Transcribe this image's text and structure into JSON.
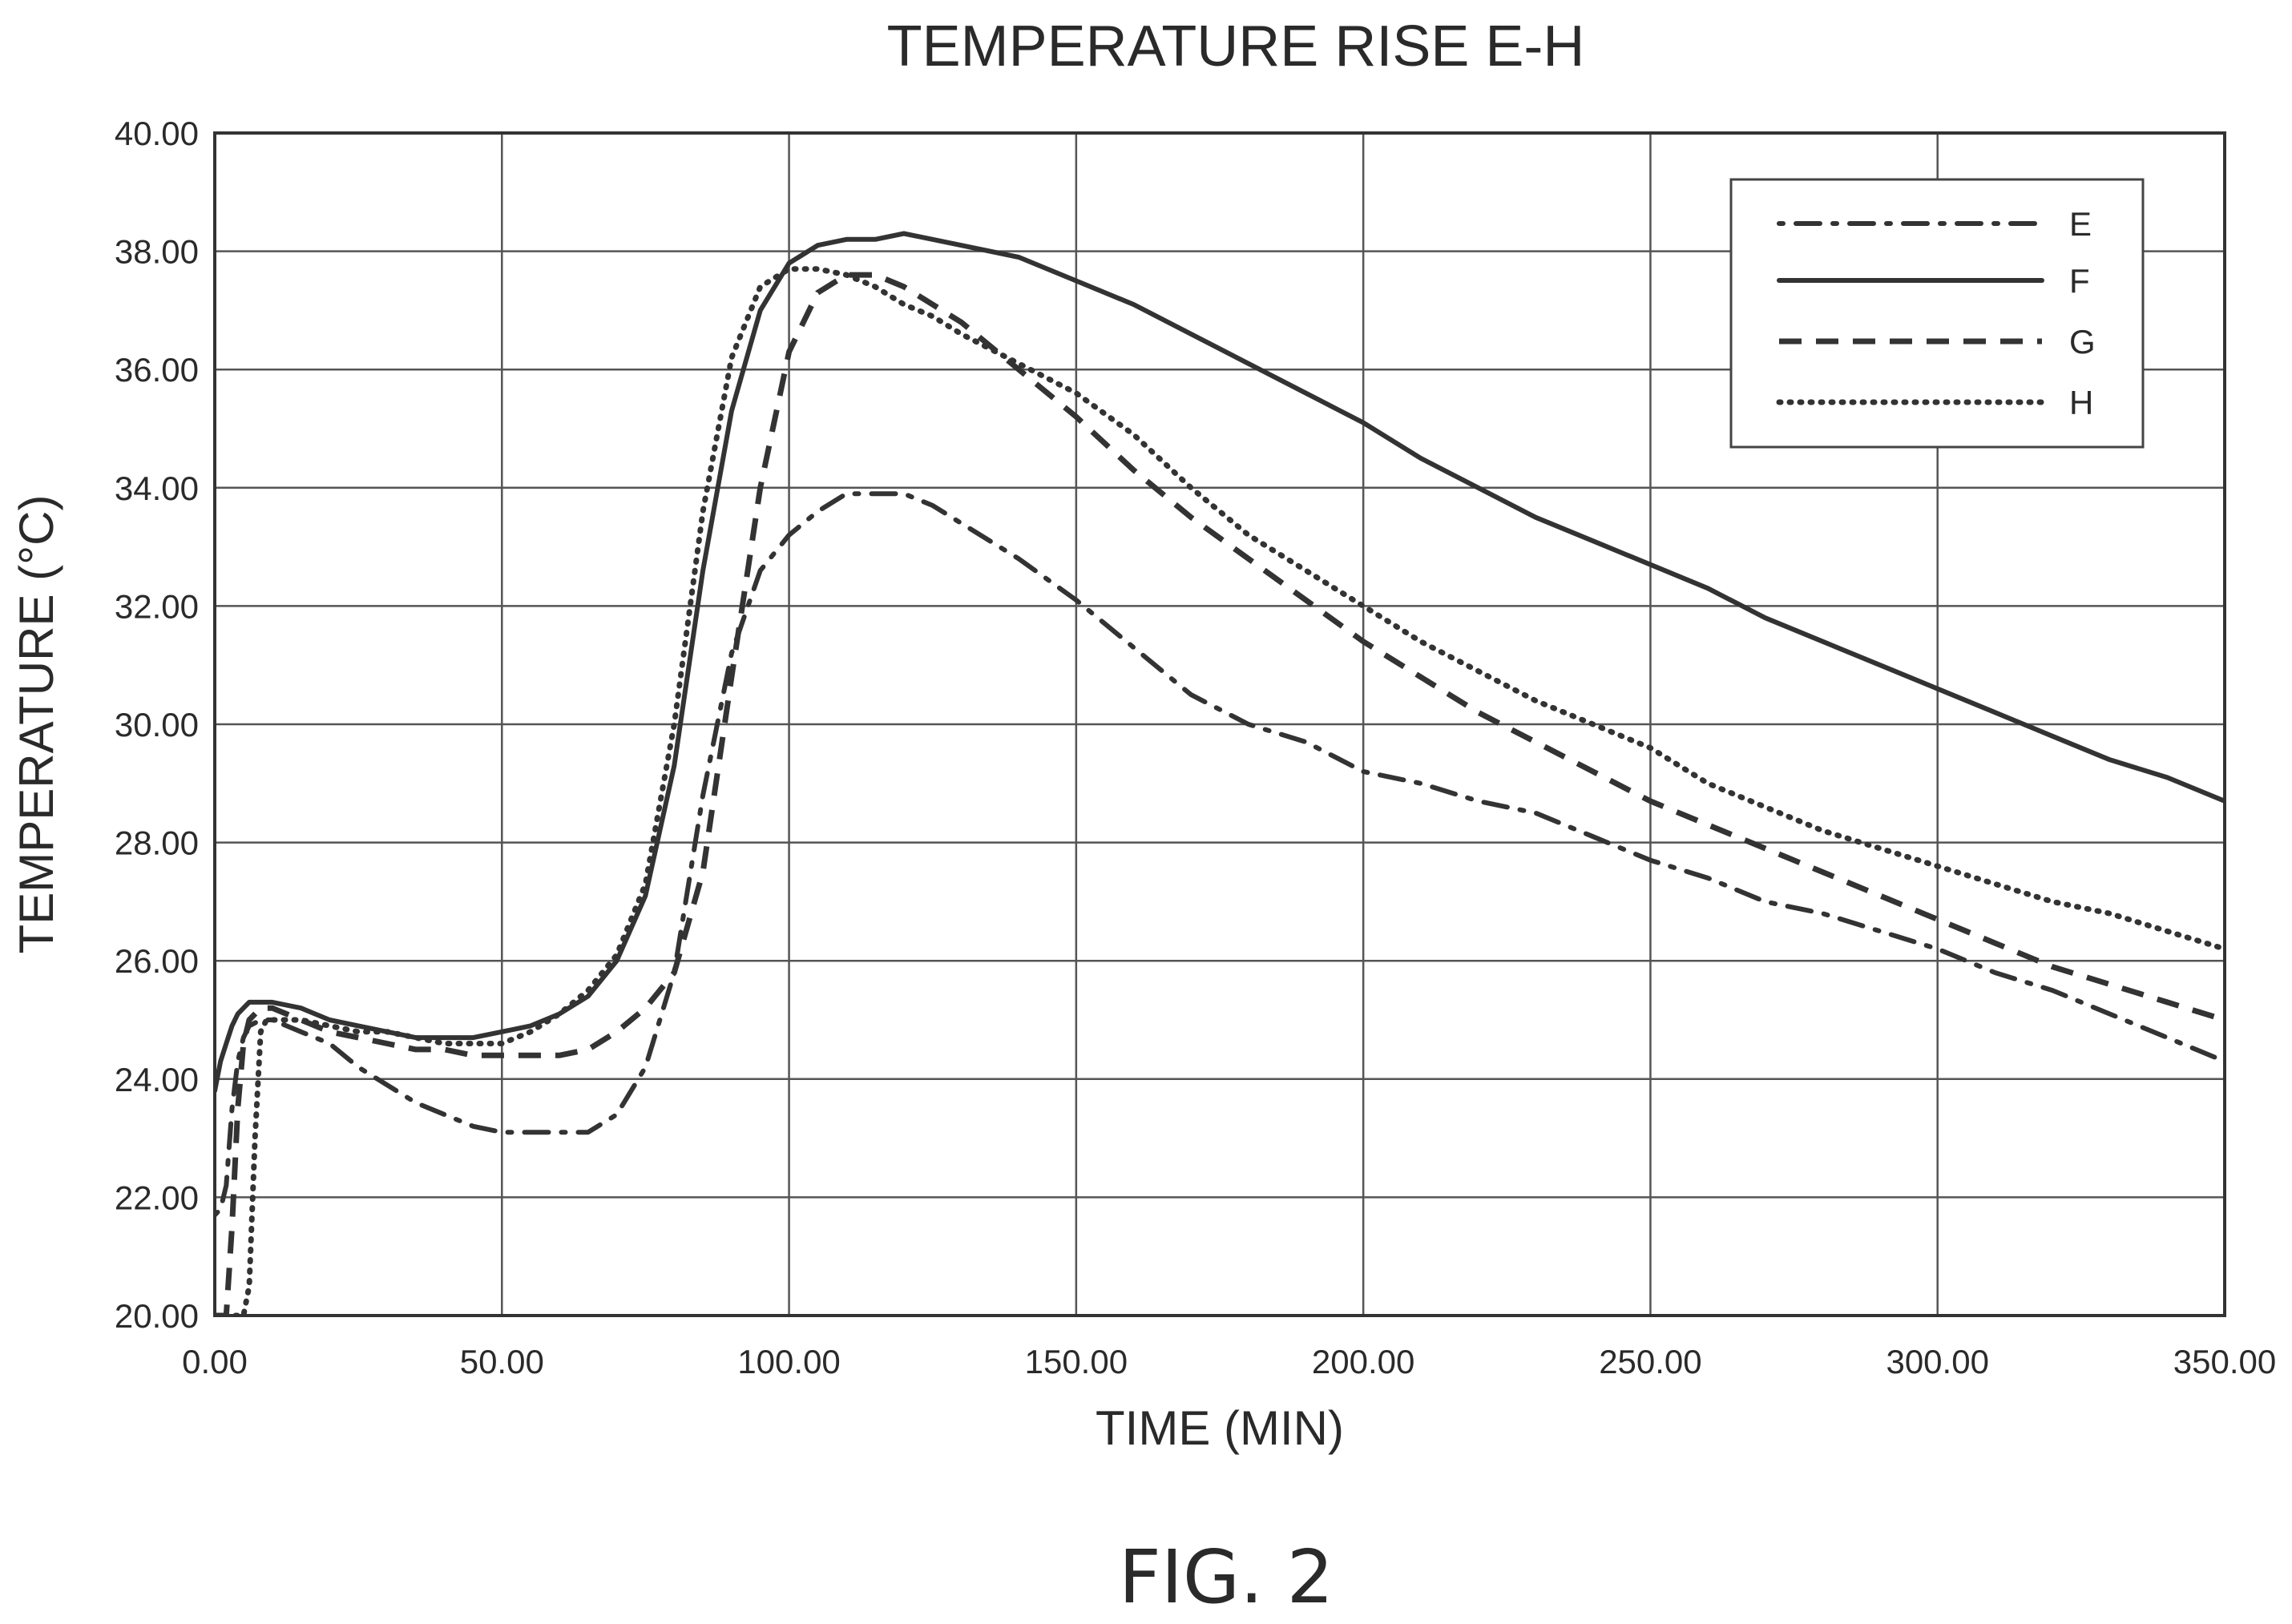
{
  "figure_label": "FIG. 2",
  "chart_data": {
    "type": "line",
    "title": "TEMPERATURE RISE E-H",
    "xlabel": "TIME (MIN)",
    "ylabel": "TEMPERATURE (°C)",
    "xlim": [
      0,
      350
    ],
    "ylim": [
      20,
      40
    ],
    "x_ticks": [
      "0.00",
      "50.00",
      "100.00",
      "150.00",
      "200.00",
      "250.00",
      "300.00",
      "350.00"
    ],
    "y_ticks": [
      "20.00",
      "22.00",
      "24.00",
      "26.00",
      "28.00",
      "30.00",
      "32.00",
      "34.00",
      "36.00",
      "38.00",
      "40.00"
    ],
    "grid": true,
    "legend_position": "top-right",
    "series": [
      {
        "name": "E",
        "style": "dash-dot",
        "x": [
          0,
          1,
          2,
          3,
          4,
          5,
          6,
          8,
          10,
          15,
          20,
          25,
          30,
          35,
          40,
          45,
          50,
          55,
          60,
          65,
          70,
          75,
          80,
          85,
          90,
          95,
          100,
          105,
          110,
          115,
          120,
          125,
          130,
          140,
          150,
          160,
          170,
          180,
          190,
          200,
          210,
          220,
          230,
          240,
          250,
          260,
          270,
          280,
          290,
          300,
          310,
          320,
          330,
          340,
          350
        ],
        "y": [
          21.7,
          21.8,
          22.2,
          23.5,
          24.3,
          24.7,
          24.9,
          25.0,
          25.0,
          24.8,
          24.6,
          24.2,
          23.9,
          23.6,
          23.4,
          23.2,
          23.1,
          23.1,
          23.1,
          23.1,
          23.4,
          24.2,
          25.8,
          28.8,
          31.2,
          32.6,
          33.2,
          33.6,
          33.9,
          33.9,
          33.9,
          33.7,
          33.4,
          32.8,
          32.1,
          31.3,
          30.5,
          30.0,
          29.7,
          29.2,
          29.0,
          28.7,
          28.5,
          28.1,
          27.7,
          27.4,
          27.0,
          26.8,
          26.5,
          26.2,
          25.8,
          25.5,
          25.1,
          24.7,
          24.3
        ]
      },
      {
        "name": "F",
        "style": "solid",
        "x": [
          0,
          1,
          2,
          3,
          4,
          5,
          6,
          8,
          10,
          15,
          20,
          25,
          30,
          35,
          40,
          45,
          50,
          55,
          60,
          65,
          70,
          75,
          80,
          85,
          90,
          95,
          100,
          105,
          110,
          115,
          120,
          125,
          130,
          140,
          150,
          160,
          170,
          180,
          190,
          200,
          210,
          220,
          230,
          240,
          250,
          260,
          270,
          280,
          290,
          300,
          310,
          320,
          330,
          340,
          350
        ],
        "y": [
          23.8,
          24.3,
          24.6,
          24.9,
          25.1,
          25.2,
          25.3,
          25.3,
          25.3,
          25.2,
          25.0,
          24.9,
          24.8,
          24.7,
          24.7,
          24.7,
          24.8,
          24.9,
          25.1,
          25.4,
          26.0,
          27.1,
          29.3,
          32.6,
          35.3,
          37.0,
          37.8,
          38.1,
          38.2,
          38.2,
          38.3,
          38.2,
          38.1,
          37.9,
          37.5,
          37.1,
          36.6,
          36.1,
          35.6,
          35.1,
          34.5,
          34.0,
          33.5,
          33.1,
          32.7,
          32.3,
          31.8,
          31.4,
          31.0,
          30.6,
          30.2,
          29.8,
          29.4,
          29.1,
          28.7
        ]
      },
      {
        "name": "G",
        "style": "dashed",
        "x": [
          0,
          2,
          3,
          4,
          5,
          6,
          7,
          8,
          10,
          15,
          20,
          25,
          30,
          35,
          40,
          45,
          50,
          55,
          60,
          65,
          70,
          75,
          80,
          85,
          90,
          95,
          100,
          105,
          110,
          115,
          120,
          125,
          130,
          140,
          150,
          160,
          170,
          180,
          190,
          200,
          210,
          220,
          230,
          240,
          250,
          260,
          270,
          280,
          290,
          300,
          310,
          320,
          330,
          340,
          350
        ],
        "y": [
          20.0,
          20.0,
          21.5,
          23.5,
          24.6,
          25.0,
          25.1,
          25.2,
          25.2,
          25.0,
          24.8,
          24.7,
          24.6,
          24.5,
          24.5,
          24.4,
          24.4,
          24.4,
          24.4,
          24.5,
          24.8,
          25.2,
          25.8,
          27.5,
          30.8,
          34.0,
          36.3,
          37.3,
          37.6,
          37.6,
          37.4,
          37.1,
          36.8,
          36.0,
          35.2,
          34.3,
          33.5,
          32.8,
          32.1,
          31.4,
          30.8,
          30.2,
          29.7,
          29.2,
          28.7,
          28.3,
          27.9,
          27.5,
          27.1,
          26.7,
          26.3,
          25.9,
          25.6,
          25.3,
          25.0
        ]
      },
      {
        "name": "H",
        "style": "dotted",
        "x": [
          0,
          5,
          6,
          7,
          8,
          9,
          10,
          15,
          20,
          25,
          30,
          35,
          40,
          45,
          50,
          55,
          60,
          65,
          70,
          75,
          80,
          85,
          90,
          95,
          100,
          105,
          110,
          115,
          120,
          125,
          130,
          140,
          150,
          160,
          170,
          180,
          190,
          200,
          210,
          220,
          230,
          240,
          250,
          260,
          270,
          280,
          290,
          300,
          310,
          320,
          330,
          340,
          350
        ],
        "y": [
          20.0,
          20.0,
          20.5,
          23.0,
          24.8,
          25.0,
          25.0,
          25.0,
          24.9,
          24.8,
          24.8,
          24.7,
          24.6,
          24.6,
          24.6,
          24.8,
          25.1,
          25.5,
          26.1,
          27.3,
          30.0,
          33.6,
          36.2,
          37.4,
          37.7,
          37.7,
          37.6,
          37.4,
          37.1,
          36.9,
          36.6,
          36.1,
          35.6,
          34.9,
          34.0,
          33.2,
          32.6,
          32.0,
          31.4,
          30.9,
          30.4,
          30.0,
          29.6,
          29.0,
          28.6,
          28.2,
          27.9,
          27.6,
          27.3,
          27.0,
          26.8,
          26.5,
          26.2
        ]
      }
    ]
  }
}
